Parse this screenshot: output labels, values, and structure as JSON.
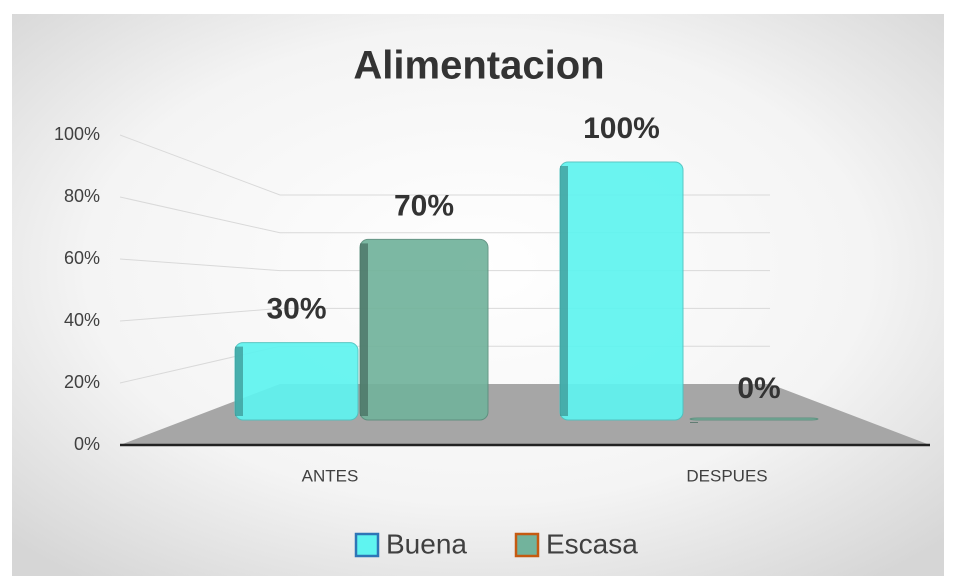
{
  "chart_data": {
    "type": "bar",
    "title": "Alimentacion",
    "categories": [
      "ANTES",
      "DESPUES"
    ],
    "series": [
      {
        "name": "Buena",
        "color": "#5ff4f0",
        "values": [
          30,
          100
        ],
        "value_labels": [
          "30%",
          "100%"
        ]
      },
      {
        "name": "Escasa",
        "color": "#72b39c",
        "values": [
          70,
          0
        ],
        "value_labels": [
          "70%",
          "0%"
        ]
      }
    ],
    "ylim": [
      0,
      100
    ],
    "yticks": [
      {
        "value": 0,
        "label": "0%"
      },
      {
        "value": 20,
        "label": "20%"
      },
      {
        "value": 40,
        "label": "40%"
      },
      {
        "value": 60,
        "label": "60%"
      },
      {
        "value": 80,
        "label": "80%"
      },
      {
        "value": 100,
        "label": "100%"
      }
    ],
    "grid": true,
    "legend": "bottom"
  }
}
